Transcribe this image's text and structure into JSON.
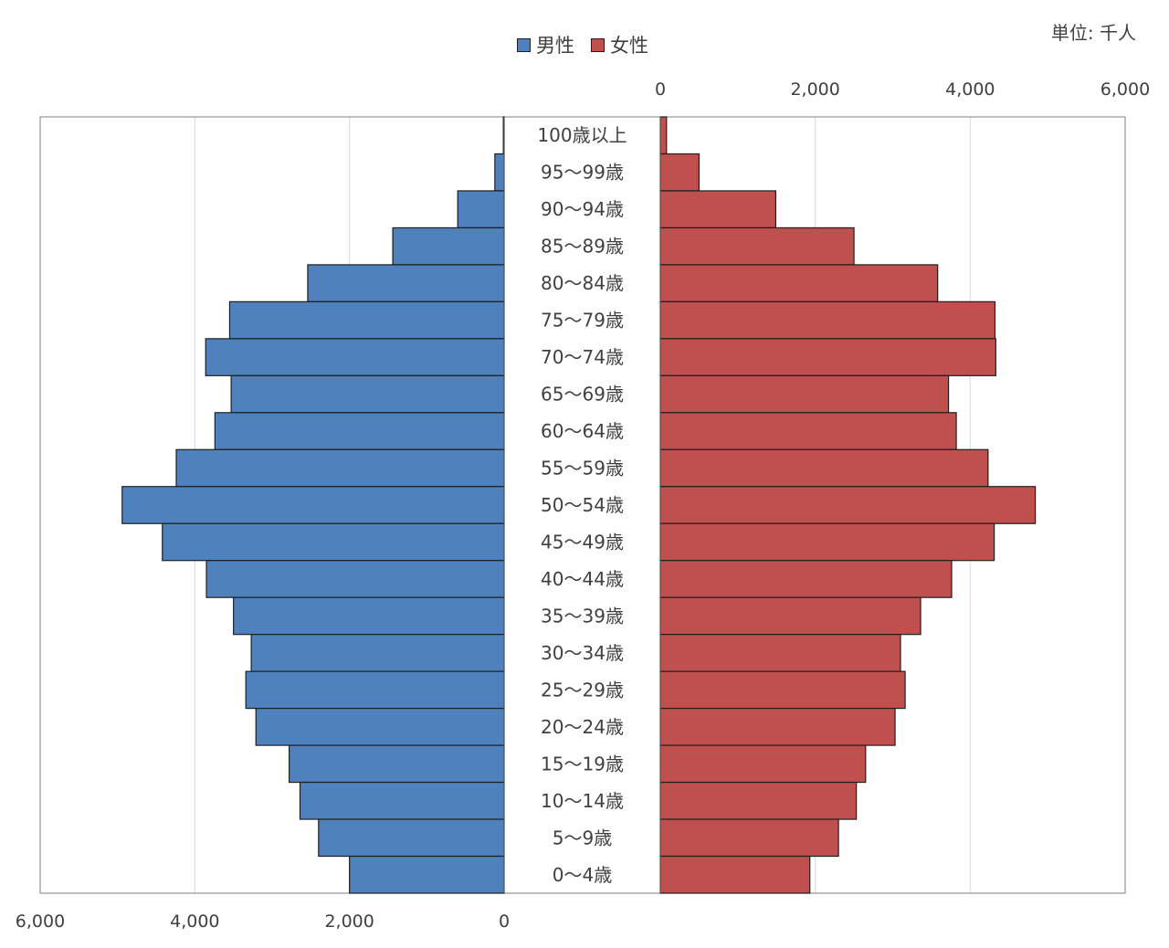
{
  "unit_label": "単位: 千人",
  "colors": {
    "male": "#4f81bd",
    "female": "#c0504d",
    "border": "#1f1f1f",
    "grid": "#d9d9d9"
  },
  "chart_data": {
    "type": "bar",
    "subtype": "population-pyramid",
    "legend_position": "top",
    "grid": true,
    "categories": [
      "100歳以上",
      "95〜99歳",
      "90〜94歳",
      "85〜89歳",
      "80〜84歳",
      "75〜79歳",
      "70〜74歳",
      "65〜69歳",
      "60〜64歳",
      "55〜59歳",
      "50〜54歳",
      "45〜49歳",
      "40〜44歳",
      "35〜39歳",
      "30〜34歳",
      "25〜29歳",
      "20〜24歳",
      "15〜19歳",
      "10〜14歳",
      "5〜9歳",
      "0〜4歳"
    ],
    "male_axis": {
      "ticks": [
        "6,000",
        "4,000",
        "2,000",
        "0"
      ],
      "range": [
        6000,
        0
      ]
    },
    "female_axis": {
      "ticks": [
        "0",
        "2,000",
        "4,000",
        "6,000"
      ],
      "range": [
        0,
        6000
      ]
    },
    "series": [
      {
        "name": "男性",
        "side": "left",
        "values": [
          10,
          120,
          600,
          1440,
          2540,
          3550,
          3860,
          3530,
          3740,
          4240,
          4940,
          4420,
          3850,
          3500,
          3270,
          3340,
          3210,
          2780,
          2640,
          2400,
          2000
        ]
      },
      {
        "name": "女性",
        "side": "right",
        "values": [
          80,
          500,
          1490,
          2500,
          3580,
          4320,
          4330,
          3720,
          3820,
          4230,
          4840,
          4310,
          3760,
          3360,
          3100,
          3160,
          3030,
          2650,
          2530,
          2300,
          1930
        ]
      }
    ]
  }
}
